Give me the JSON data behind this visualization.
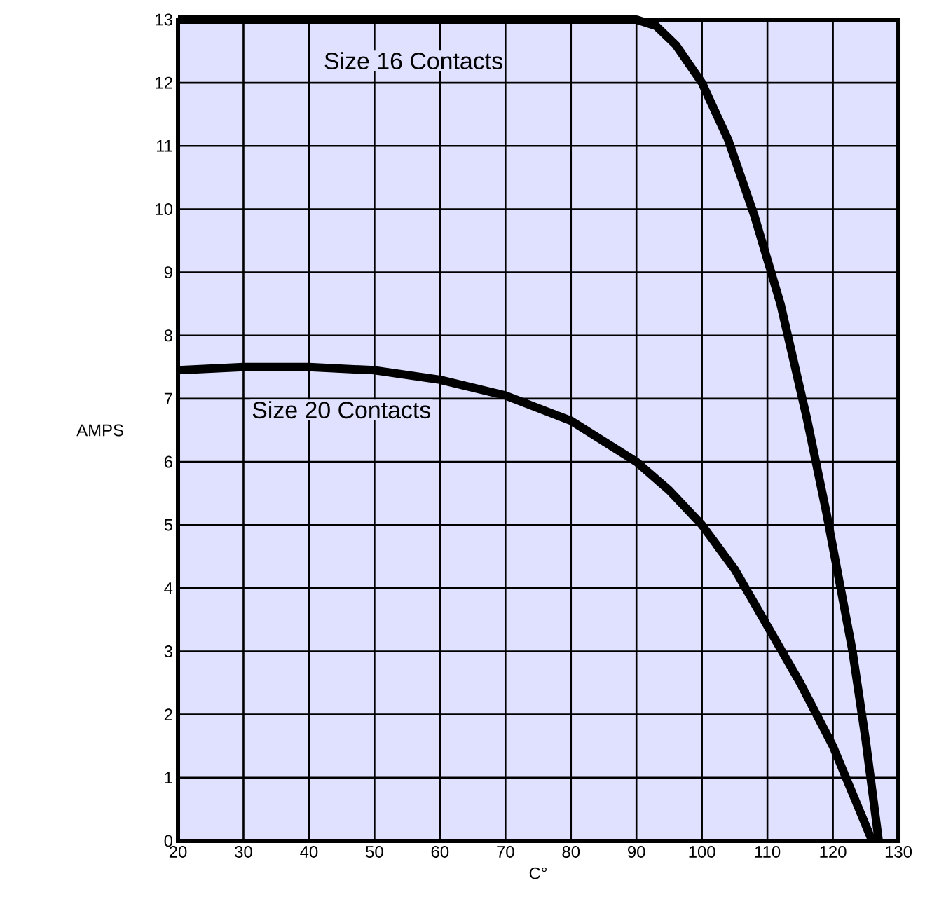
{
  "chart_data": {
    "type": "line",
    "xlabel": "C°",
    "ylabel": "AMPS",
    "xlim": [
      20,
      130
    ],
    "ylim": [
      0,
      13
    ],
    "xticks": [
      20,
      30,
      40,
      50,
      60,
      70,
      80,
      90,
      100,
      110,
      120,
      130
    ],
    "yticks": [
      0,
      1,
      2,
      3,
      4,
      5,
      6,
      7,
      8,
      9,
      10,
      11,
      12,
      13
    ],
    "grid": true,
    "legend": false,
    "marker": "none",
    "line_style": "solid",
    "series": [
      {
        "name": "Size 16 Contacts",
        "color": "#000000",
        "x": [
          20,
          90,
          93,
          96,
          100,
          104,
          108,
          112,
          116,
          119,
          121,
          123,
          125,
          127
        ],
        "values": [
          13,
          13,
          12.9,
          12.6,
          12,
          11.1,
          9.9,
          8.5,
          6.7,
          5.2,
          4.1,
          3,
          1.6,
          0
        ]
      },
      {
        "name": "Size 20 Contacts",
        "color": "#000000",
        "x": [
          20,
          30,
          40,
          50,
          60,
          70,
          80,
          90,
          95,
          100,
          105,
          110,
          115,
          120,
          126
        ],
        "values": [
          7.45,
          7.5,
          7.5,
          7.45,
          7.3,
          7.05,
          6.65,
          6.0,
          5.55,
          5.0,
          4.3,
          3.4,
          2.5,
          1.5,
          0
        ]
      }
    ]
  }
}
